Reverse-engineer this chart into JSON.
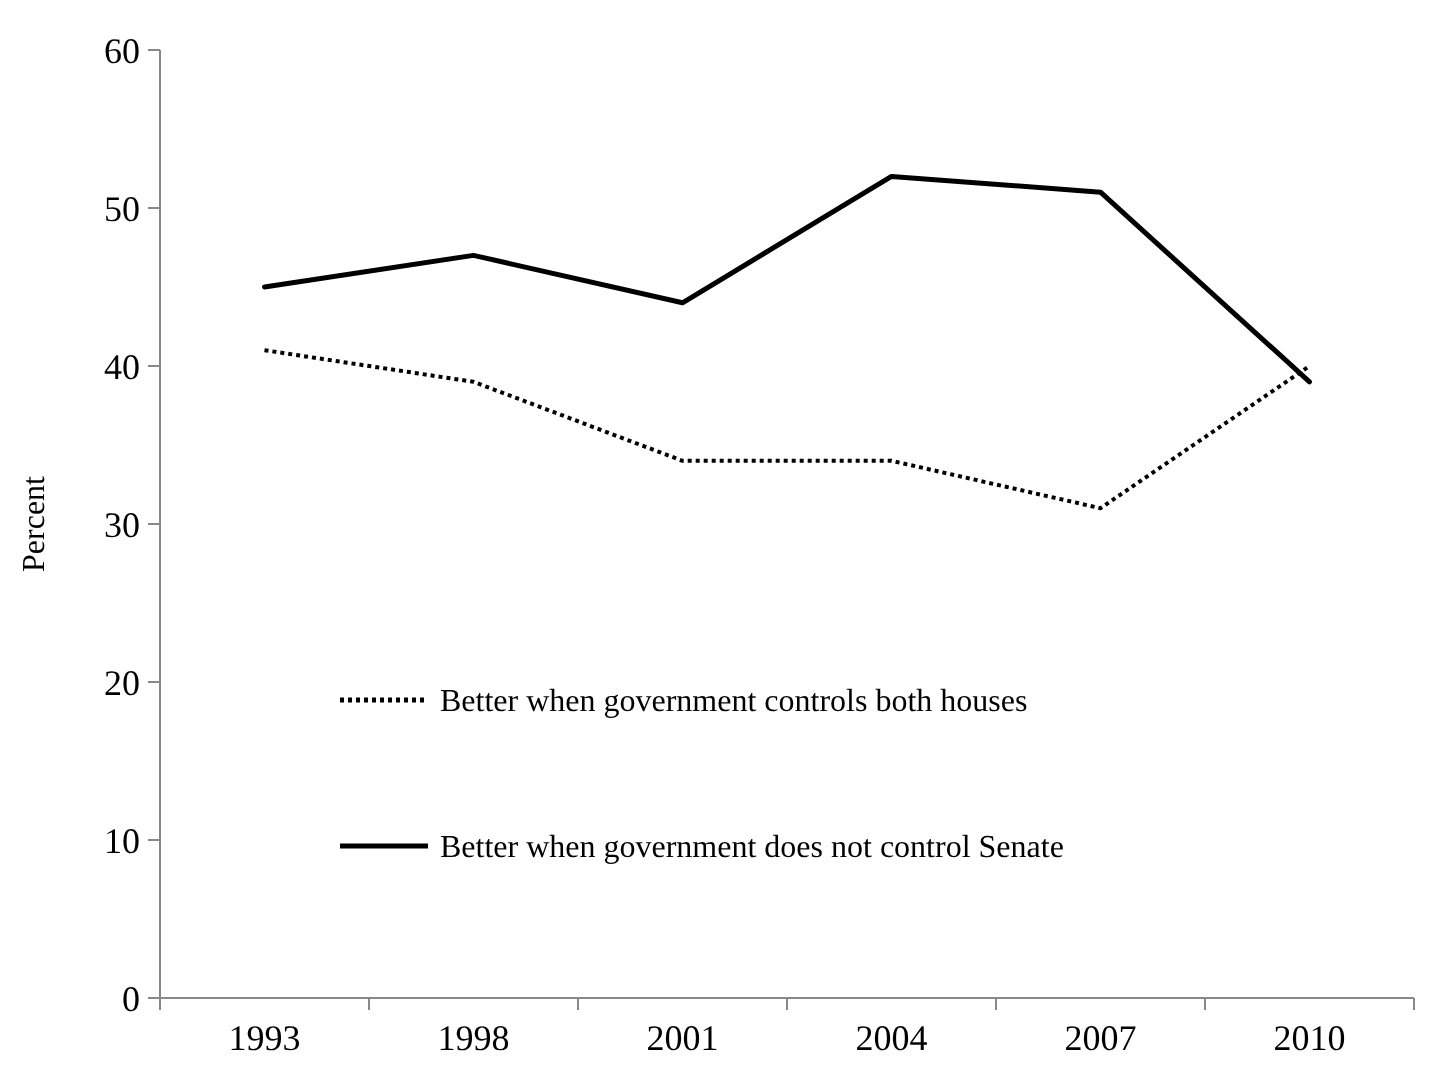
{
  "chart_data": {
    "type": "line",
    "ylabel": "Percent",
    "categories": [
      "1993",
      "1998",
      "2001",
      "2004",
      "2007",
      "2010"
    ],
    "series": [
      {
        "name": "Better when government controls both houses",
        "color": "#000000",
        "line_style": "dotted",
        "values": [
          41,
          39,
          34,
          34,
          31,
          40
        ]
      },
      {
        "name": "Better when government does not control Senate",
        "color": "#000000",
        "line_style": "solid",
        "values": [
          45,
          47,
          44,
          52,
          51,
          39
        ]
      }
    ],
    "ylim": [
      0,
      60
    ],
    "yticks": [
      0,
      10,
      20,
      30,
      40,
      50,
      60
    ],
    "grid": false,
    "legend": "bottom",
    "marker": "none"
  }
}
